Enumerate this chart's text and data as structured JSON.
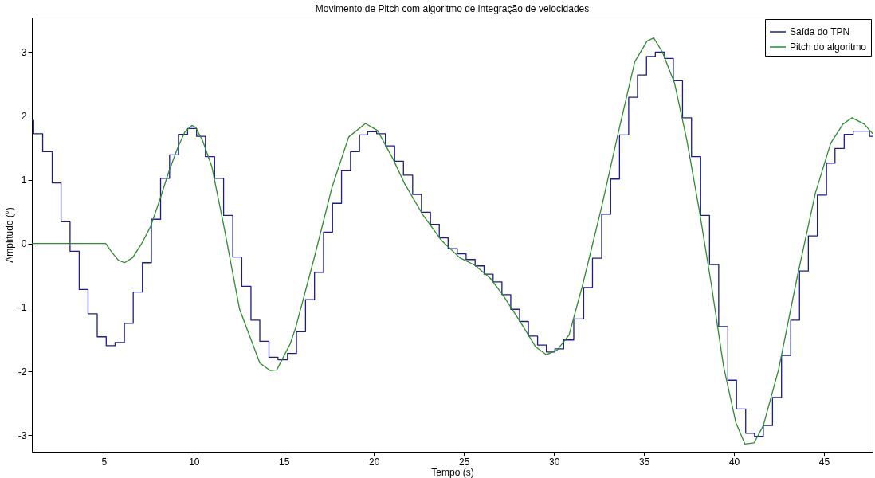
{
  "chart_data": {
    "type": "line",
    "title": "Movimento de Pitch com algoritmo de integração de velocidades",
    "xlabel": "Tempo (s)",
    "ylabel": "Amplitude (°)",
    "xlim": [
      1,
      47.7
    ],
    "ylim": [
      -3.26,
      3.54
    ],
    "xticks": [
      5,
      10,
      15,
      20,
      25,
      30,
      35,
      40,
      45
    ],
    "yticks": [
      -3,
      -2,
      -1,
      0,
      1,
      2,
      3
    ],
    "grid": false,
    "legend": "top right",
    "marker": "none",
    "line_style": "solid",
    "series": [
      {
        "name": "Saída do TPN",
        "type": "step",
        "color": "#1c1c8c",
        "x": [
          1.0,
          1.1,
          1.6,
          2.13,
          2.62,
          3.12,
          3.63,
          4.12,
          4.63,
          5.13,
          5.62,
          6.14,
          6.63,
          7.14,
          7.64,
          8.15,
          8.65,
          9.14,
          9.65,
          10.15,
          10.64,
          11.15,
          11.65,
          12.16,
          12.66,
          13.17,
          13.66,
          14.17,
          14.67,
          15.2,
          15.7,
          16.2,
          16.7,
          17.2,
          17.7,
          18.2,
          18.7,
          19.2,
          19.65,
          20.15,
          20.64,
          21.15,
          21.64,
          22.15,
          22.64,
          23.14,
          23.63,
          24.12,
          24.63,
          25.12,
          25.62,
          26.12,
          26.62,
          27.11,
          27.6,
          28.09,
          28.58,
          29.09,
          29.58,
          30.05,
          30.54,
          31.1,
          31.65,
          32.14,
          32.65,
          33.15,
          33.64,
          34.15,
          34.64,
          35.14,
          35.63,
          36.14,
          36.63,
          37.14,
          37.64,
          38.15,
          38.64,
          39.15,
          39.66,
          40.14,
          40.65,
          41.14,
          41.63,
          42.14,
          42.64,
          43.15,
          43.64,
          44.13,
          44.63,
          45.14,
          45.61,
          46.12,
          46.62,
          47.53,
          47.7
        ],
        "values": [
          1.93,
          1.72,
          1.44,
          0.95,
          0.34,
          -0.12,
          -0.72,
          -1.1,
          -1.46,
          -1.6,
          -1.55,
          -1.25,
          -0.76,
          -0.3,
          0.38,
          1.02,
          1.39,
          1.71,
          1.8,
          1.68,
          1.36,
          1.02,
          0.44,
          -0.21,
          -0.67,
          -1.2,
          -1.53,
          -1.78,
          -1.82,
          -1.72,
          -1.38,
          -0.88,
          -0.45,
          0.18,
          0.63,
          1.14,
          1.44,
          1.7,
          1.75,
          1.72,
          1.53,
          1.29,
          1.07,
          0.77,
          0.49,
          0.3,
          0.09,
          -0.08,
          -0.16,
          -0.25,
          -0.35,
          -0.48,
          -0.6,
          -0.8,
          -1.03,
          -1.22,
          -1.45,
          -1.59,
          -1.7,
          -1.65,
          -1.51,
          -1.18,
          -0.69,
          -0.23,
          0.46,
          1.01,
          1.7,
          2.29,
          2.64,
          2.93,
          3.0,
          2.9,
          2.55,
          1.97,
          1.36,
          0.44,
          -0.33,
          -1.3,
          -2.14,
          -2.59,
          -2.97,
          -3.02,
          -2.85,
          -2.41,
          -1.75,
          -1.2,
          -0.43,
          0.12,
          0.76,
          1.26,
          1.49,
          1.71,
          1.76,
          1.68,
          1.68
        ]
      },
      {
        "name": "Pitch do algoritmo",
        "color": "#2e8b2e",
        "x": [
          1,
          5.1,
          5.4,
          5.8,
          6.14,
          6.6,
          7.1,
          7.6,
          8.1,
          8.6,
          9.1,
          9.5,
          9.9,
          10.1,
          10.5,
          11.0,
          11.68,
          12.54,
          13.66,
          14.24,
          14.6,
          15.35,
          15.64,
          16.66,
          17.67,
          18.6,
          19.53,
          20.2,
          21.05,
          21.72,
          22.74,
          23.75,
          24.76,
          25.61,
          26.45,
          27.13,
          28.14,
          28.99,
          29.58,
          30.17,
          30.84,
          31.6,
          32.62,
          33.64,
          34.49,
          35.17,
          35.54,
          36.02,
          36.7,
          37.38,
          38.06,
          38.74,
          39.42,
          40.1,
          40.61,
          41.12,
          41.63,
          42.48,
          43.5,
          44.52,
          45.37,
          46.05,
          46.56,
          47.24,
          47.7
        ],
        "values": [
          0,
          0,
          -0.12,
          -0.26,
          -0.3,
          -0.22,
          0,
          0.27,
          0.68,
          1.12,
          1.5,
          1.75,
          1.85,
          1.82,
          1.6,
          1.2,
          0.25,
          -1.03,
          -1.87,
          -1.99,
          -1.98,
          -1.57,
          -1.33,
          -0.25,
          0.88,
          1.67,
          1.88,
          1.77,
          1.33,
          0.93,
          0.44,
          0.05,
          -0.22,
          -0.34,
          -0.54,
          -0.79,
          -1.23,
          -1.62,
          -1.74,
          -1.67,
          -1.43,
          -0.64,
          0.54,
          1.82,
          2.85,
          3.17,
          3.22,
          3.0,
          2.51,
          1.62,
          0.54,
          -0.64,
          -1.92,
          -2.8,
          -3.14,
          -3.12,
          -2.85,
          -1.97,
          -0.54,
          0.79,
          1.57,
          1.87,
          1.97,
          1.87,
          1.72
        ]
      }
    ]
  }
}
